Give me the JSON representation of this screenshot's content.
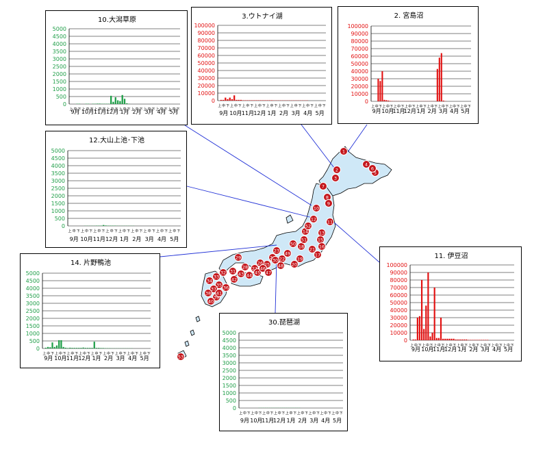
{
  "colors": {
    "map_fill": "#cfe8f7",
    "map_stroke": "#000000",
    "leader": "#1f2fd6",
    "marker": "#c4161c",
    "marker_text": "#ffffff"
  },
  "tick_letters": [
    "上",
    "中",
    "下"
  ],
  "months": [
    "9月",
    "10月",
    "11月",
    "12月",
    "1月",
    "2月",
    "3月",
    "4月",
    "5月"
  ],
  "chart_data": [
    {
      "id": "c10",
      "type": "bar",
      "title": "10.大潟草原",
      "color": "#1f9e48",
      "yticks": [
        "0",
        "500",
        "1000",
        "1500",
        "2000",
        "2500",
        "3000",
        "3500",
        "4000",
        "4500",
        "5000"
      ],
      "ylim": [
        0,
        5000
      ],
      "values": [
        0,
        0,
        0,
        20,
        20,
        0,
        0,
        20,
        20,
        0,
        20,
        20,
        30,
        30,
        20,
        20,
        20,
        20,
        550,
        150,
        450,
        250,
        200,
        600,
        350,
        50,
        20,
        0,
        0,
        0,
        0,
        0,
        0,
        0,
        0,
        0,
        0,
        0,
        0,
        0,
        0,
        0,
        0,
        0,
        0,
        0,
        0,
        0,
        0
      ]
    },
    {
      "id": "c3",
      "type": "bar",
      "title": "3.ウトナイ湖",
      "color": "#e21010",
      "yticks": [
        "0",
        "10000",
        "20000",
        "30000",
        "40000",
        "50000",
        "60000",
        "70000",
        "80000",
        "90000",
        "100000"
      ],
      "ylim": [
        0,
        100000
      ],
      "values": [
        0,
        1000,
        1000,
        4000,
        2000,
        4000,
        2000,
        7000,
        1000,
        1000,
        1000,
        500,
        500,
        500,
        500,
        500,
        500,
        500,
        500,
        500,
        500,
        500,
        500,
        500,
        500,
        300,
        300,
        300,
        300,
        300,
        300,
        300,
        300,
        300,
        300,
        300,
        300,
        300,
        300,
        300,
        300,
        0,
        0,
        0,
        0,
        0,
        0,
        0,
        0
      ]
    },
    {
      "id": "c2",
      "type": "bar",
      "title": "2. 宮島沼",
      "color": "#e21010",
      "yticks": [
        "0",
        "10000",
        "20000",
        "30000",
        "40000",
        "50000",
        "60000",
        "70000",
        "80000",
        "90000",
        "100000"
      ],
      "ylim": [
        0,
        100000
      ],
      "values": [
        0,
        0,
        0,
        30000,
        27000,
        40000,
        2000,
        1500,
        1000,
        500,
        300,
        200,
        200,
        200,
        200,
        200,
        200,
        200,
        200,
        200,
        200,
        200,
        200,
        200,
        200,
        200,
        200,
        200,
        200,
        200,
        200,
        200,
        43000,
        58000,
        64000,
        1000,
        300,
        0,
        0,
        0,
        0,
        0,
        0,
        0,
        0,
        0,
        0,
        0,
        0
      ]
    },
    {
      "id": "c12",
      "type": "bar",
      "title": "12.大山上池･下池",
      "color": "#1f9e48",
      "yticks": [
        "0",
        "500",
        "1000",
        "1500",
        "2000",
        "2500",
        "3000",
        "3500",
        "4000",
        "4500",
        "5000"
      ],
      "ylim": [
        0,
        5000
      ],
      "values": [
        0,
        0,
        0,
        0,
        0,
        0,
        0,
        10,
        10,
        10,
        10,
        10,
        20,
        20,
        20,
        60,
        30,
        20,
        20,
        20,
        20,
        10,
        10,
        10,
        10,
        10,
        10,
        10,
        10,
        0,
        0,
        0,
        0,
        0,
        0,
        0,
        0,
        0,
        0,
        0,
        0,
        0,
        0,
        0,
        0,
        0,
        0,
        0,
        0
      ]
    },
    {
      "id": "c11",
      "type": "bar",
      "title": "11. 伊豆沼",
      "color": "#e21010",
      "yticks": [
        "0",
        "10000",
        "20000",
        "30000",
        "40000",
        "50000",
        "60000",
        "70000",
        "80000",
        "90000",
        "100000"
      ],
      "ylim": [
        0,
        100000
      ],
      "values": [
        0,
        1000,
        1000,
        30000,
        32000,
        80000,
        15000,
        46000,
        90000,
        5000,
        10000,
        70000,
        3000,
        3000,
        30000,
        2000,
        2000,
        2000,
        2000,
        2000,
        2000,
        1000,
        1000,
        1000,
        1000,
        1000,
        1000,
        500,
        500,
        500,
        500,
        500,
        500,
        500,
        500,
        500,
        500,
        0,
        0,
        0,
        0,
        0,
        0,
        0,
        0,
        0,
        0,
        0,
        0
      ]
    },
    {
      "id": "c14",
      "type": "bar",
      "title": "14. 片野鴨池",
      "color": "#1f9e48",
      "yticks": [
        "0",
        "500",
        "1000",
        "1500",
        "2000",
        "2500",
        "3000",
        "3500",
        "4000",
        "4500",
        "5000"
      ],
      "ylim": [
        0,
        5000
      ],
      "values": [
        0,
        50,
        100,
        80,
        400,
        100,
        200,
        550,
        550,
        100,
        50,
        30,
        50,
        40,
        40,
        40,
        40,
        40,
        60,
        40,
        40,
        40,
        40,
        450,
        40,
        40,
        30,
        30,
        20,
        20,
        20,
        10,
        10,
        10,
        10,
        10,
        10,
        10,
        10,
        10,
        10,
        0,
        0,
        0,
        0,
        0,
        0,
        0,
        0
      ]
    },
    {
      "id": "c30",
      "type": "bar",
      "title": "30.琵琶湖",
      "color": "#1f9e48",
      "yticks": [
        "0",
        "500",
        "1000",
        "1500",
        "2000",
        "2500",
        "3000",
        "3500",
        "4000",
        "4500",
        "5000"
      ],
      "ylim": [
        0,
        5000
      ],
      "values": [
        0,
        0,
        0,
        0,
        0,
        0,
        0,
        0,
        0,
        10,
        10,
        10,
        10,
        10,
        10,
        10,
        10,
        10,
        10,
        10,
        10,
        10,
        10,
        10,
        10,
        10,
        10,
        10,
        10,
        0,
        0,
        0,
        0,
        0,
        0,
        0,
        0,
        0,
        0,
        0,
        0,
        0,
        0,
        0,
        0,
        0,
        0,
        0,
        0
      ]
    }
  ],
  "markers": [
    "1",
    "2",
    "3",
    "4",
    "5",
    "6",
    "7",
    "8",
    "9",
    "10",
    "11",
    "12",
    "13",
    "14",
    "15",
    "16",
    "17",
    "18",
    "19",
    "20",
    "21",
    "22",
    "23",
    "24",
    "25",
    "26",
    "27",
    "28",
    "29",
    "30",
    "31",
    "32",
    "33",
    "34",
    "35",
    "36",
    "37",
    "38",
    "39",
    "40",
    "41",
    "42",
    "43",
    "44",
    "45",
    "46",
    "47",
    "48",
    "49",
    "50",
    "51",
    "52",
    "53"
  ]
}
